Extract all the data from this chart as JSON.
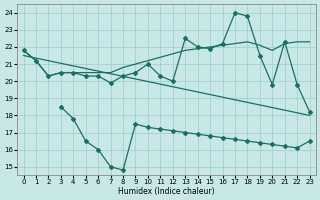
{
  "xlabel": "Humidex (Indice chaleur)",
  "background_color": "#c8e8e8",
  "grid_color": "#aad4d4",
  "line_color": "#1a7060",
  "x_all": [
    0,
    1,
    2,
    3,
    4,
    5,
    6,
    7,
    8,
    9,
    10,
    11,
    12,
    13,
    14,
    15,
    16,
    17,
    18,
    19,
    20,
    21,
    22,
    23
  ],
  "line1_x": [
    0,
    1,
    2,
    3,
    4,
    5,
    6,
    7,
    8,
    9,
    10,
    11,
    12,
    13,
    14,
    15,
    16,
    17,
    18,
    19,
    20,
    21,
    22,
    23
  ],
  "line1_y": [
    21.8,
    21.2,
    20.3,
    20.5,
    20.5,
    20.3,
    20.3,
    19.9,
    20.3,
    20.5,
    21.0,
    20.3,
    20.0,
    22.5,
    22.0,
    21.9,
    22.2,
    24.0,
    23.8,
    21.5,
    19.8,
    22.3,
    19.8,
    18.2
  ],
  "line2_x": [
    0,
    1,
    2,
    3,
    4,
    5,
    6,
    7,
    8,
    9,
    10,
    11,
    12,
    13,
    14,
    15,
    16,
    17,
    18,
    19,
    20,
    21,
    22,
    23
  ],
  "line2_y": [
    21.8,
    21.2,
    20.3,
    20.5,
    20.5,
    20.5,
    20.5,
    20.5,
    20.8,
    21.0,
    21.2,
    21.4,
    21.6,
    21.8,
    21.9,
    22.0,
    22.1,
    22.2,
    22.3,
    22.1,
    21.8,
    22.2,
    22.3,
    22.3
  ],
  "line3_x": [
    3,
    4,
    5,
    6,
    7,
    8,
    9,
    10,
    11,
    12,
    13,
    14,
    15,
    16,
    17,
    18,
    19,
    20,
    21,
    22,
    23
  ],
  "line3_y": [
    18.5,
    17.8,
    16.5,
    16.0,
    15.0,
    14.8,
    17.5,
    17.3,
    17.2,
    17.1,
    17.0,
    16.9,
    16.8,
    16.7,
    16.6,
    16.5,
    16.4,
    16.3,
    16.2,
    16.1,
    16.5
  ],
  "line4_x": [
    0,
    23
  ],
  "line4_y": [
    21.5,
    18.0
  ],
  "xlim": [
    -0.5,
    23.5
  ],
  "ylim": [
    14.5,
    24.5
  ],
  "yticks": [
    15,
    16,
    17,
    18,
    19,
    20,
    21,
    22,
    23,
    24
  ],
  "xticks": [
    0,
    1,
    2,
    3,
    4,
    5,
    6,
    7,
    8,
    9,
    10,
    11,
    12,
    13,
    14,
    15,
    16,
    17,
    18,
    19,
    20,
    21,
    22,
    23
  ]
}
